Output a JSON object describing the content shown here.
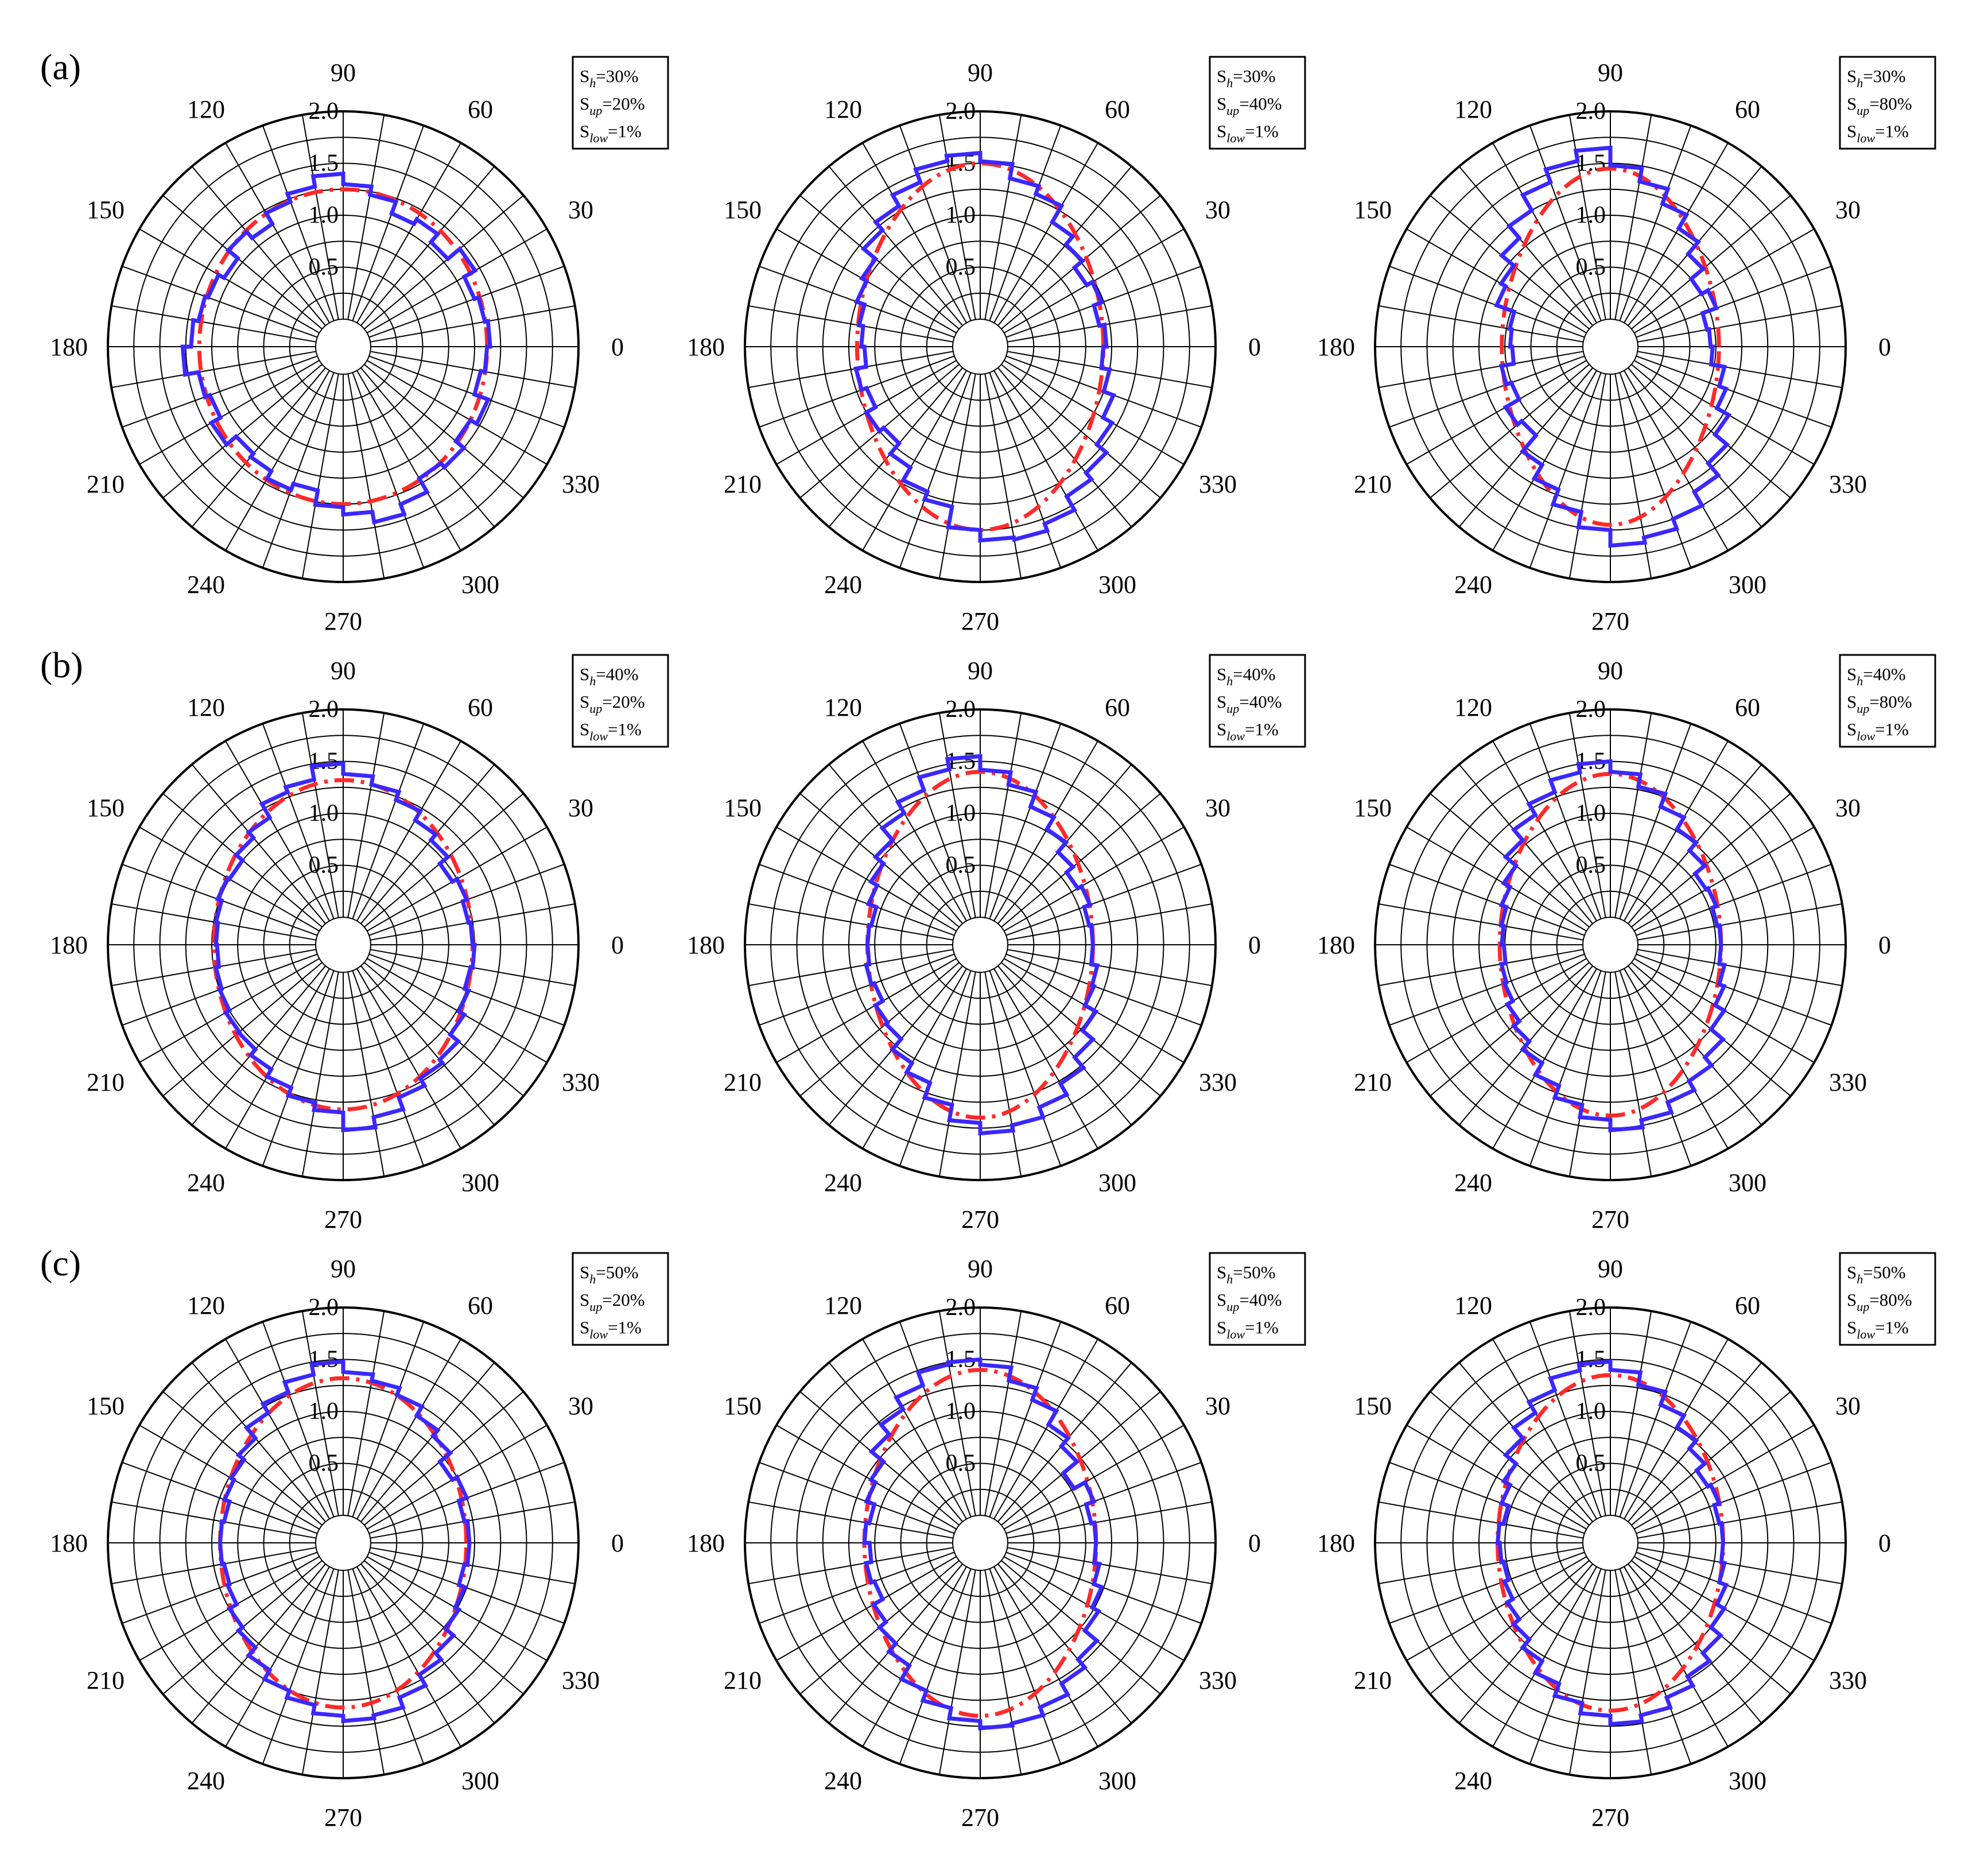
{
  "rows": [
    {
      "label": "(a)",
      "sh": "30%"
    },
    {
      "label": "(b)",
      "sh": "40%"
    },
    {
      "label": "(c)",
      "sh": "50%"
    }
  ],
  "columns": [
    {
      "sup": "20%"
    },
    {
      "sup": "40%"
    },
    {
      "sup": "80%"
    }
  ],
  "legend": {
    "h_prefix": "S",
    "h_sub": "h",
    "up_prefix": "S",
    "up_sub": "up",
    "low_prefix": "S",
    "low_sub": "low",
    "eq": "=",
    "slow_value": "1%"
  },
  "angle_ticks": [
    "0",
    "30",
    "60",
    "90",
    "120",
    "150",
    "180",
    "210",
    "240",
    "270",
    "300",
    "330"
  ],
  "radial_ticks": [
    "0.5",
    "1.0",
    "1.5",
    "2.0"
  ],
  "colors": {
    "histogram": "#3b28ff",
    "fit": "#ff2a2a",
    "grid": "#000000"
  },
  "chart_data": [
    {
      "type": "polar",
      "row": "(a)",
      "S_h": "30%",
      "S_up": "20%",
      "S_low": "1%",
      "rlim": [
        0,
        2.0
      ],
      "r_ticks": [
        0.5,
        1.0,
        1.5,
        2.0
      ],
      "theta_ticks_deg": [
        0,
        30,
        60,
        90,
        120,
        150,
        180,
        210,
        240,
        270,
        300,
        330
      ],
      "fit_axes": {
        "a": 1.12,
        "b": 1.25
      },
      "histogram_bin_deg": 10,
      "histogram_r": [
        1.15,
        1.12,
        1.08,
        1.2,
        1.05,
        1.15,
        1.1,
        1.22,
        1.3,
        1.4,
        1.3,
        1.22,
        1.1,
        1.18,
        1.06,
        1.12,
        1.15,
        1.2,
        1.28,
        1.15,
        1.1,
        1.2,
        1.08,
        1.12,
        1.2,
        1.14,
        1.28,
        1.35,
        1.45,
        1.35,
        1.2,
        1.25,
        1.15,
        1.22,
        1.08,
        1.12
      ]
    },
    {
      "type": "polar",
      "row": "(a)",
      "S_h": "30%",
      "S_up": "40%",
      "S_low": "1%",
      "rlim": [
        0,
        2.0
      ],
      "r_ticks": [
        0.5,
        1.0,
        1.5,
        2.0
      ],
      "theta_ticks_deg": [
        0,
        30,
        60,
        90,
        120,
        150,
        180,
        210,
        240,
        270,
        300,
        330
      ],
      "fit_axes": {
        "a": 0.92,
        "b": 1.5
      },
      "histogram_bin_deg": 10,
      "histogram_r": [
        0.95,
        0.9,
        0.98,
        0.92,
        1.02,
        1.12,
        1.3,
        1.38,
        1.52,
        1.6,
        1.55,
        1.42,
        1.3,
        1.2,
        1.05,
        1.0,
        0.92,
        0.88,
        0.85,
        0.95,
        0.9,
        1.0,
        0.95,
        1.08,
        1.22,
        1.3,
        1.5,
        1.6,
        1.62,
        1.55,
        1.4,
        1.32,
        1.2,
        1.1,
        1.0,
        0.92
      ]
    },
    {
      "type": "polar",
      "row": "(a)",
      "S_h": "30%",
      "S_up": "80%",
      "S_low": "1%",
      "rlim": [
        0,
        2.0
      ],
      "r_ticks": [
        0.5,
        1.0,
        1.5,
        2.0
      ],
      "theta_ticks_deg": [
        0,
        30,
        60,
        90,
        120,
        150,
        180,
        210,
        240,
        270,
        300,
        330
      ],
      "fit_axes": {
        "a": 0.78,
        "b": 1.45
      },
      "histogram_bin_deg": 10,
      "histogram_r": [
        0.7,
        0.68,
        0.82,
        0.75,
        0.9,
        1.05,
        1.2,
        1.35,
        1.48,
        1.65,
        1.55,
        1.42,
        1.25,
        1.1,
        0.95,
        0.9,
        0.72,
        0.7,
        0.68,
        0.8,
        0.75,
        0.9,
        0.85,
        1.05,
        1.2,
        1.35,
        1.5,
        1.65,
        1.6,
        1.5,
        1.35,
        1.2,
        1.05,
        0.92,
        0.85,
        0.72
      ]
    },
    {
      "type": "polar",
      "row": "(b)",
      "S_h": "40%",
      "S_up": "20%",
      "S_low": "1%",
      "rlim": [
        0,
        2.0
      ],
      "r_ticks": [
        0.5,
        1.0,
        1.5,
        2.0
      ],
      "theta_ticks_deg": [
        0,
        30,
        60,
        90,
        120,
        150,
        180,
        210,
        240,
        270,
        300,
        330
      ],
      "fit_axes": {
        "a": 0.98,
        "b": 1.32
      },
      "histogram_bin_deg": 10,
      "histogram_r": [
        0.98,
        0.96,
        1.0,
        0.95,
        1.05,
        1.12,
        1.22,
        1.3,
        1.38,
        1.48,
        1.35,
        1.3,
        1.15,
        1.08,
        1.0,
        1.02,
        0.98,
        0.96,
        0.95,
        0.98,
        1.0,
        1.04,
        1.05,
        1.12,
        1.2,
        1.28,
        1.35,
        1.52,
        1.42,
        1.3,
        1.22,
        1.18,
        1.08,
        1.02,
        0.98,
        1.0
      ]
    },
    {
      "type": "polar",
      "row": "(b)",
      "S_h": "40%",
      "S_up": "40%",
      "S_low": "1%",
      "rlim": [
        0,
        2.0
      ],
      "r_ticks": [
        0.5,
        1.0,
        1.5,
        2.0
      ],
      "theta_ticks_deg": [
        0,
        30,
        60,
        90,
        120,
        150,
        180,
        210,
        240,
        270,
        300,
        330
      ],
      "fit_axes": {
        "a": 0.82,
        "b": 1.4
      },
      "histogram_bin_deg": 10,
      "histogram_r": [
        0.82,
        0.8,
        0.86,
        0.82,
        0.9,
        1.02,
        1.15,
        1.3,
        1.42,
        1.55,
        1.45,
        1.32,
        1.2,
        1.05,
        0.95,
        0.88,
        0.8,
        0.82,
        0.82,
        0.85,
        0.82,
        0.9,
        0.92,
        1.05,
        1.15,
        1.3,
        1.45,
        1.55,
        1.5,
        1.4,
        1.28,
        1.15,
        1.02,
        0.9,
        0.88,
        0.82
      ]
    },
    {
      "type": "polar",
      "row": "(b)",
      "S_h": "40%",
      "S_up": "80%",
      "S_low": "1%",
      "rlim": [
        0,
        2.0
      ],
      "r_ticks": [
        0.5,
        1.0,
        1.5,
        2.0
      ],
      "theta_ticks_deg": [
        0,
        30,
        60,
        90,
        120,
        150,
        180,
        210,
        240,
        270,
        300,
        330
      ],
      "fit_axes": {
        "a": 0.8,
        "b": 1.38
      },
      "histogram_bin_deg": 10,
      "histogram_r": [
        0.8,
        0.78,
        0.82,
        0.8,
        0.92,
        1.02,
        1.15,
        1.28,
        1.4,
        1.5,
        1.42,
        1.3,
        1.18,
        1.05,
        0.92,
        0.85,
        0.8,
        0.78,
        0.76,
        0.8,
        0.82,
        0.88,
        0.95,
        1.05,
        1.18,
        1.3,
        1.42,
        1.52,
        1.45,
        1.35,
        1.25,
        1.15,
        1.0,
        0.9,
        0.85,
        0.8
      ]
    },
    {
      "type": "polar",
      "row": "(c)",
      "S_h": "50%",
      "S_up": "20%",
      "S_low": "1%",
      "rlim": [
        0,
        2.0
      ],
      "r_ticks": [
        0.5,
        1.0,
        1.5,
        2.0
      ],
      "theta_ticks_deg": [
        0,
        30,
        60,
        90,
        120,
        150,
        180,
        210,
        240,
        270,
        300,
        330
      ],
      "fit_axes": {
        "a": 0.92,
        "b": 1.32
      },
      "histogram_bin_deg": 10,
      "histogram_r": [
        0.95,
        0.92,
        1.0,
        0.95,
        1.08,
        1.15,
        1.25,
        1.32,
        1.38,
        1.48,
        1.38,
        1.28,
        1.18,
        1.05,
        0.98,
        0.95,
        0.9,
        0.92,
        0.92,
        0.9,
        0.92,
        1.0,
        1.05,
        1.15,
        1.25,
        1.32,
        1.4,
        1.45,
        1.42,
        1.32,
        1.2,
        1.12,
        1.02,
        0.98,
        0.92,
        0.95
      ]
    },
    {
      "type": "polar",
      "row": "(c)",
      "S_h": "50%",
      "S_up": "40%",
      "S_low": "1%",
      "rlim": [
        0,
        2.0
      ],
      "r_ticks": [
        0.5,
        1.0,
        1.5,
        2.0
      ],
      "theta_ticks_deg": [
        0,
        30,
        60,
        90,
        120,
        150,
        180,
        210,
        240,
        270,
        300,
        330
      ],
      "fit_axes": {
        "a": 0.85,
        "b": 1.4
      },
      "histogram_bin_deg": 10,
      "histogram_r": [
        0.85,
        0.82,
        0.9,
        0.78,
        0.95,
        1.05,
        1.2,
        1.32,
        1.45,
        1.5,
        1.48,
        1.35,
        1.22,
        1.1,
        0.95,
        0.9,
        0.82,
        0.85,
        0.8,
        0.85,
        0.82,
        0.92,
        1.0,
        1.1,
        1.25,
        1.35,
        1.45,
        1.52,
        1.5,
        1.42,
        1.3,
        1.2,
        1.05,
        0.98,
        0.9,
        0.85
      ]
    },
    {
      "type": "polar",
      "row": "(c)",
      "S_h": "50%",
      "S_up": "80%",
      "S_low": "1%",
      "rlim": [
        0,
        2.0
      ],
      "r_ticks": [
        0.5,
        1.0,
        1.5,
        2.0
      ],
      "theta_ticks_deg": [
        0,
        30,
        60,
        90,
        120,
        150,
        180,
        210,
        240,
        270,
        300,
        330
      ],
      "fit_axes": {
        "a": 0.82,
        "b": 1.35
      },
      "histogram_bin_deg": 10,
      "histogram_r": [
        0.82,
        0.8,
        0.85,
        0.82,
        0.92,
        1.02,
        1.15,
        1.28,
        1.4,
        1.48,
        1.42,
        1.3,
        1.18,
        1.05,
        0.92,
        0.85,
        0.78,
        0.82,
        0.8,
        0.78,
        0.82,
        0.88,
        0.95,
        1.05,
        1.18,
        1.3,
        1.4,
        1.48,
        1.42,
        1.32,
        1.22,
        1.12,
        1.0,
        0.92,
        0.85,
        0.82
      ]
    }
  ]
}
